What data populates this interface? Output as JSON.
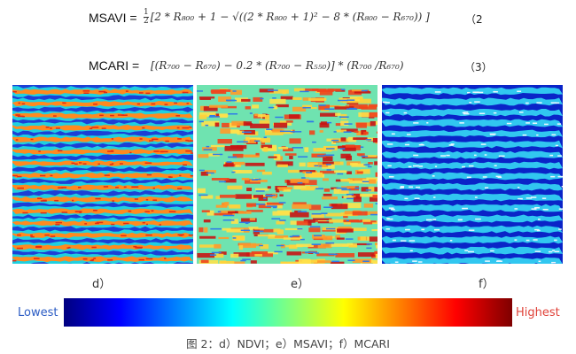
{
  "equations": [
    {
      "name": "MSAVI =",
      "frac_num": "1",
      "frac_den": "2",
      "body": "[2 * R₈₀₀ + 1 − √((2 * R₈₀₀ + 1)² − 8 * (R₈₀₀ − R₆₇₀)) ]",
      "number": "（2"
    },
    {
      "name": "MCARI =",
      "frac_num": "",
      "frac_den": "",
      "body": "[(R₇₀₀ − R₆₇₀) − 0.2 * (R₇₀₀ − R₅₅₀)] * (R₇₀₀ /R₆₇₀)",
      "number": "（3）"
    }
  ],
  "panels": [
    {
      "label": "d）",
      "index": "NDVI",
      "style": "ndvi"
    },
    {
      "label": "e）",
      "index": "MSAVI",
      "style": "msavi"
    },
    {
      "label": "f）",
      "index": "MCARI",
      "style": "mcari"
    }
  ],
  "colorbar": {
    "low_label": "Lowest",
    "high_label": "Highest",
    "low_color": "#2b5cc4",
    "high_color": "#e0433a",
    "stops": [
      "#00007f",
      "#0000ff",
      "#0080ff",
      "#00ffff",
      "#80ff80",
      "#ffff00",
      "#ff8000",
      "#ff0000",
      "#7f0000"
    ]
  },
  "caption": "图 2：d）NDVI；e）MSAVI；f）MCARI"
}
